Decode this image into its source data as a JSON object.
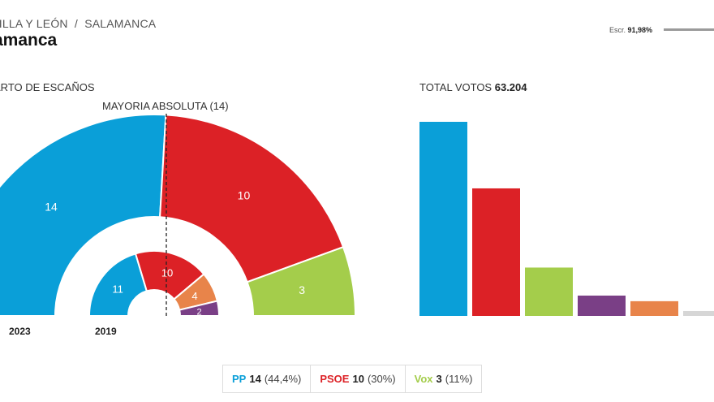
{
  "header": {
    "breadcrumb_region": "TILLA Y LEÓN",
    "breadcrumb_sep": "/",
    "breadcrumb_city": "SALAMANCA",
    "title": "amanca",
    "escr_label": "Escr.",
    "escr_value": "91,98%"
  },
  "colors": {
    "PP": "#0a9fd8",
    "PSOE": "#dc2126",
    "Vox": "#a4cd4b",
    "purple": "#7a3f86",
    "orange": "#e8844a",
    "grey": "#d6d6d6"
  },
  "chart_data": [
    {
      "type": "pie",
      "subtype": "parliament-hemicycle",
      "title": "ARTO DE ESCAÑOS",
      "annotation": "MAYORIA ABSOLUTA (14)",
      "rings": [
        {
          "label": "2023",
          "slices": [
            {
              "party": "PP",
              "seats": 14,
              "color": "#0a9fd8"
            },
            {
              "party": "PSOE",
              "seats": 10,
              "color": "#dc2126"
            },
            {
              "party": "Vox",
              "seats": 3,
              "color": "#a4cd4b"
            }
          ]
        },
        {
          "label": "2019",
          "slices": [
            {
              "party": "PP",
              "seats": 11,
              "color": "#0a9fd8"
            },
            {
              "party": "PSOE",
              "seats": 10,
              "color": "#dc2126"
            },
            {
              "party": "",
              "seats": 4,
              "color": "#e8844a"
            },
            {
              "party": "",
              "seats": 2,
              "color": "#7a3f86"
            }
          ]
        }
      ]
    },
    {
      "type": "bar",
      "title_prefix": "TOTAL VOTOS",
      "title_value": "63.204",
      "categories": [
        "PP",
        "PSOE",
        "Vox",
        "",
        "",
        ""
      ],
      "values": [
        27700,
        18200,
        6900,
        2900,
        2100,
        700
      ],
      "colors": [
        "#0a9fd8",
        "#dc2126",
        "#a4cd4b",
        "#7a3f86",
        "#e8844a",
        "#d6d6d6"
      ],
      "ylim": [
        0,
        28500
      ]
    }
  ],
  "legend": [
    {
      "party": "PP",
      "seats": "14",
      "pct": "(44,4%)",
      "color": "#0a9fd8"
    },
    {
      "party": "PSOE",
      "seats": "10",
      "pct": "(30%)",
      "color": "#dc2126"
    },
    {
      "party": "Vox",
      "seats": "3",
      "pct": "(11%)",
      "color": "#a4cd4b"
    }
  ]
}
